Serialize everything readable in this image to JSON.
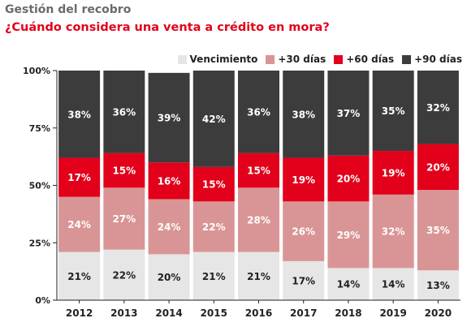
{
  "header": {
    "subtitle": "Gestión del recobro",
    "title": "¿Cuándo considera una venta a crédito en mora?"
  },
  "colors": {
    "vencimiento": "#e6e6e6",
    "d30": "#d99595",
    "d60": "#e2001a",
    "d90": "#3c3c3c",
    "title": "#e2001a",
    "subtitle": "#6b6b6b"
  },
  "chart_data": {
    "type": "bar",
    "stacked": true,
    "categories": [
      "2012",
      "2013",
      "2014",
      "2015",
      "2016",
      "2017",
      "2018",
      "2019",
      "2020"
    ],
    "series": [
      {
        "name": "Vencimiento",
        "values": [
          21,
          22,
          20,
          21,
          21,
          17,
          14,
          14,
          13
        ]
      },
      {
        "name": "+30 días",
        "values": [
          24,
          27,
          24,
          22,
          28,
          26,
          29,
          32,
          35
        ]
      },
      {
        "name": "+60 días",
        "values": [
          17,
          15,
          16,
          15,
          15,
          19,
          20,
          19,
          20
        ]
      },
      {
        "name": "+90 días",
        "values": [
          38,
          36,
          39,
          42,
          36,
          38,
          37,
          35,
          32
        ]
      }
    ],
    "yticks": [
      "0%",
      "25%",
      "50%",
      "75%",
      "100%"
    ],
    "ylim": [
      0,
      100
    ],
    "legend_position": "top-right",
    "value_suffix": "%"
  }
}
